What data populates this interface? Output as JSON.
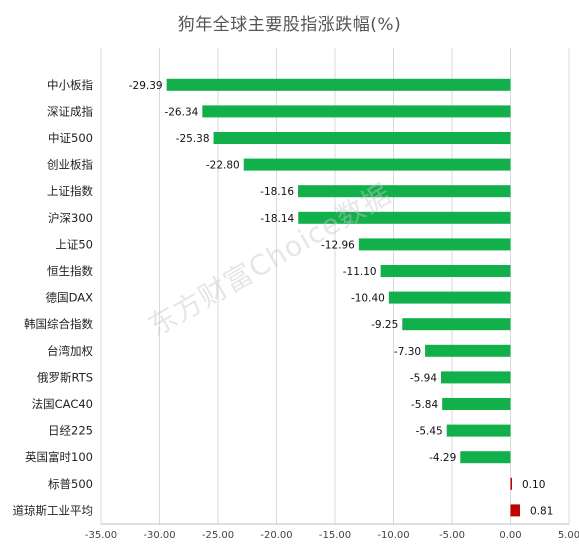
{
  "chart_data": {
    "type": "bar",
    "orientation": "horizontal",
    "title": "狗年全球主要股指涨跌幅(%)",
    "categories": [
      "中小板指",
      "深证成指",
      "中证500",
      "创业板指",
      "上证指数",
      "沪深300",
      "上证50",
      "恒生指数",
      "德国DAX",
      "韩国综合指数",
      "台湾加权",
      "俄罗斯RTS",
      "法国CAC40",
      "日经225",
      "英国富时100",
      "标普500",
      "道琼斯工业平均"
    ],
    "values": [
      -29.39,
      -26.34,
      -25.38,
      -22.8,
      -18.16,
      -18.14,
      -12.96,
      -11.1,
      -10.4,
      -9.25,
      -7.3,
      -5.94,
      -5.84,
      -5.45,
      -4.29,
      0.1,
      0.81
    ],
    "value_labels": [
      "-29.39",
      "-26.34",
      "-25.38",
      "-22.80",
      "-18.16",
      "-18.14",
      "-12.96",
      "-11.10",
      "-10.40",
      "-9.25",
      "-7.30",
      "-5.94",
      "-5.84",
      "-5.45",
      "-4.29",
      "0.10",
      "0.81"
    ],
    "xlim": [
      -35,
      5
    ],
    "xticks": [
      -35,
      -30,
      -25,
      -20,
      -15,
      -10,
      -5,
      0,
      5
    ],
    "xtick_labels": [
      "-35.00",
      "-30.00",
      "-25.00",
      "-20.00",
      "-15.00",
      "-10.00",
      "-5.00",
      "0.00",
      "5.00"
    ],
    "colors": {
      "negative": "#11b04b",
      "positive": "#c00000",
      "grid": "#d9d9d9",
      "axis": "#bfbfbf"
    },
    "grid": true,
    "legend": "none",
    "watermark": "东方财富Choice数据"
  }
}
